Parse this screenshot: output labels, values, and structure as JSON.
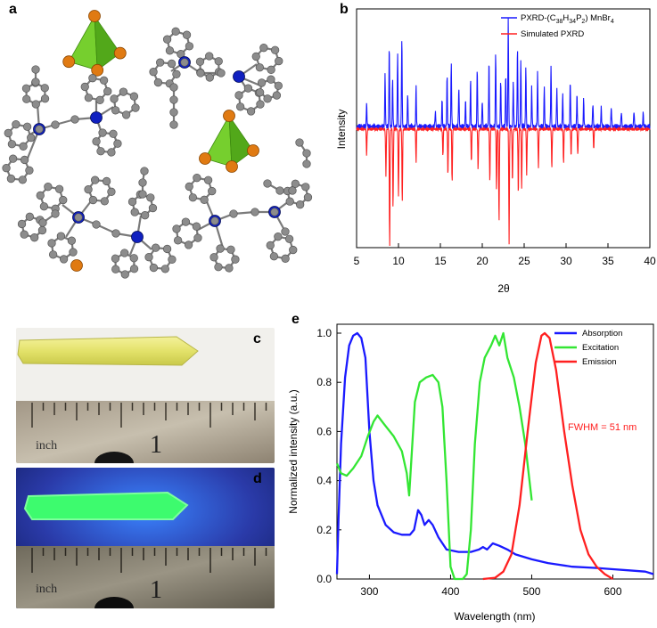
{
  "panels": {
    "a": {
      "letter": "a"
    },
    "b": {
      "letter": "b"
    },
    "c": {
      "letter": "c",
      "ruler_text": "inch",
      "ruler_number": "1"
    },
    "d": {
      "letter": "d",
      "ruler_text": "inch",
      "ruler_number": "1"
    },
    "e": {
      "letter": "e"
    }
  },
  "colors": {
    "blue": "#1a1aff",
    "red": "#ff2020",
    "green": "#33e633",
    "bromide": "#e07a12",
    "tetrahedron": "#5dbb1e",
    "carbon": "#8c8c8c",
    "phosphorus": "#1020c0"
  },
  "chart_data": [
    {
      "type": "line",
      "panel": "b",
      "xlabel": "2θ",
      "ylabel": "Intensity",
      "xlim": [
        5,
        40
      ],
      "xticks": [
        5,
        10,
        15,
        20,
        25,
        30,
        35,
        40
      ],
      "series": [
        {
          "name": "PXRD-(C38H34P2) MnBr4",
          "legend_main": "PXRD-(C",
          "legend_sub1": "38",
          "legend_mid1": "H",
          "legend_sub2": "34",
          "legend_mid2": "P",
          "legend_sub3": "2",
          "legend_mid3": ") MnBr",
          "legend_sub4": "4",
          "color": "#1a1aff",
          "peaks": [
            [
              6.2,
              0.18
            ],
            [
              8.4,
              0.4
            ],
            [
              8.9,
              0.62
            ],
            [
              9.3,
              0.35
            ],
            [
              9.9,
              0.55
            ],
            [
              10.4,
              0.68
            ],
            [
              11.1,
              0.25
            ],
            [
              12.1,
              0.3
            ],
            [
              14.4,
              0.12
            ],
            [
              15.2,
              0.2
            ],
            [
              15.8,
              0.38
            ],
            [
              16.3,
              0.48
            ],
            [
              17.2,
              0.3
            ],
            [
              18.0,
              0.2
            ],
            [
              18.6,
              0.35
            ],
            [
              19.4,
              0.45
            ],
            [
              20.0,
              0.2
            ],
            [
              20.8,
              0.5
            ],
            [
              21.6,
              0.55
            ],
            [
              22.2,
              0.35
            ],
            [
              22.8,
              0.4
            ],
            [
              23.1,
              0.82
            ],
            [
              23.7,
              0.35
            ],
            [
              24.2,
              0.6
            ],
            [
              24.6,
              0.5
            ],
            [
              25.2,
              0.45
            ],
            [
              25.9,
              0.3
            ],
            [
              26.6,
              0.4
            ],
            [
              27.4,
              0.3
            ],
            [
              28.2,
              0.45
            ],
            [
              28.9,
              0.3
            ],
            [
              29.6,
              0.25
            ],
            [
              30.5,
              0.35
            ],
            [
              31.3,
              0.25
            ],
            [
              32.1,
              0.2
            ],
            [
              33.2,
              0.18
            ],
            [
              34.2,
              0.15
            ],
            [
              35.4,
              0.15
            ],
            [
              36.6,
              0.12
            ],
            [
              38.1,
              0.12
            ],
            [
              39.2,
              0.1
            ]
          ]
        },
        {
          "name": "Simulated PXRD",
          "color": "#ff2020",
          "peaks": [
            [
              6.2,
              -0.2
            ],
            [
              8.5,
              -0.35
            ],
            [
              8.95,
              -0.92
            ],
            [
              9.35,
              -0.6
            ],
            [
              10.0,
              -0.5
            ],
            [
              10.45,
              -0.55
            ],
            [
              12.1,
              -0.25
            ],
            [
              15.3,
              -0.2
            ],
            [
              15.9,
              -0.35
            ],
            [
              16.4,
              -0.4
            ],
            [
              18.7,
              -0.25
            ],
            [
              19.5,
              -0.3
            ],
            [
              20.9,
              -0.4
            ],
            [
              21.7,
              -0.45
            ],
            [
              22.0,
              -0.7
            ],
            [
              23.2,
              -0.86
            ],
            [
              23.6,
              -0.4
            ],
            [
              24.3,
              -0.5
            ],
            [
              24.7,
              -0.45
            ],
            [
              25.3,
              -0.35
            ],
            [
              26.7,
              -0.3
            ],
            [
              28.3,
              -0.3
            ],
            [
              29.7,
              -0.25
            ],
            [
              30.6,
              -0.2
            ],
            [
              31.4,
              -0.2
            ],
            [
              33.3,
              -0.15
            ]
          ]
        }
      ]
    },
    {
      "type": "line",
      "panel": "e",
      "xlabel": "Wavelength (nm)",
      "ylabel": "Normalized intensity (a.u.)",
      "xlim": [
        260,
        650
      ],
      "ylim": [
        0.0,
        1.0
      ],
      "xticks": [
        300,
        400,
        500,
        600
      ],
      "yticks": [
        "0.0",
        "0.2",
        "0.4",
        "0.6",
        "0.8",
        "1.0"
      ],
      "annotation": "FWHM = 51 nm",
      "series": [
        {
          "name": "Absorption",
          "color": "#1a1aff",
          "points": [
            [
              260,
              0.02
            ],
            [
              262,
              0.25
            ],
            [
              265,
              0.55
            ],
            [
              270,
              0.82
            ],
            [
              275,
              0.95
            ],
            [
              280,
              0.99
            ],
            [
              285,
              1.0
            ],
            [
              290,
              0.98
            ],
            [
              295,
              0.9
            ],
            [
              300,
              0.6
            ],
            [
              305,
              0.4
            ],
            [
              310,
              0.3
            ],
            [
              320,
              0.22
            ],
            [
              330,
              0.19
            ],
            [
              340,
              0.18
            ],
            [
              350,
              0.18
            ],
            [
              355,
              0.2
            ],
            [
              360,
              0.28
            ],
            [
              364,
              0.26
            ],
            [
              368,
              0.22
            ],
            [
              373,
              0.24
            ],
            [
              378,
              0.22
            ],
            [
              385,
              0.17
            ],
            [
              395,
              0.12
            ],
            [
              410,
              0.11
            ],
            [
              425,
              0.11
            ],
            [
              435,
              0.12
            ],
            [
              440,
              0.13
            ],
            [
              445,
              0.12
            ],
            [
              452,
              0.145
            ],
            [
              460,
              0.135
            ],
            [
              470,
              0.12
            ],
            [
              480,
              0.1
            ],
            [
              500,
              0.08
            ],
            [
              520,
              0.065
            ],
            [
              550,
              0.05
            ],
            [
              580,
              0.045
            ],
            [
              600,
              0.04
            ],
            [
              620,
              0.035
            ],
            [
              640,
              0.03
            ],
            [
              650,
              0.02
            ]
          ]
        },
        {
          "name": "Excitation",
          "color": "#33e633",
          "points": [
            [
              260,
              0.47
            ],
            [
              265,
              0.43
            ],
            [
              272,
              0.42
            ],
            [
              280,
              0.45
            ],
            [
              290,
              0.5
            ],
            [
              298,
              0.58
            ],
            [
              305,
              0.64
            ],
            [
              310,
              0.665
            ],
            [
              318,
              0.63
            ],
            [
              330,
              0.58
            ],
            [
              340,
              0.52
            ],
            [
              346,
              0.43
            ],
            [
              349,
              0.34
            ],
            [
              352,
              0.5
            ],
            [
              356,
              0.72
            ],
            [
              362,
              0.8
            ],
            [
              370,
              0.82
            ],
            [
              378,
              0.83
            ],
            [
              385,
              0.8
            ],
            [
              390,
              0.7
            ],
            [
              395,
              0.4
            ],
            [
              400,
              0.05
            ],
            [
              405,
              0.0
            ],
            [
              415,
              0.0
            ],
            [
              420,
              0.02
            ],
            [
              425,
              0.2
            ],
            [
              430,
              0.55
            ],
            [
              436,
              0.8
            ],
            [
              442,
              0.9
            ],
            [
              450,
              0.95
            ],
            [
              455,
              0.99
            ],
            [
              460,
              0.95
            ],
            [
              465,
              1.0
            ],
            [
              470,
              0.9
            ],
            [
              478,
              0.82
            ],
            [
              485,
              0.7
            ],
            [
              492,
              0.55
            ],
            [
              500,
              0.32
            ]
          ]
        },
        {
          "name": "Emission",
          "color": "#ff2020",
          "points": [
            [
              440,
              0.0
            ],
            [
              455,
              0.005
            ],
            [
              465,
              0.03
            ],
            [
              475,
              0.1
            ],
            [
              485,
              0.3
            ],
            [
              495,
              0.6
            ],
            [
              505,
              0.88
            ],
            [
              512,
              0.99
            ],
            [
              516,
              1.0
            ],
            [
              522,
              0.98
            ],
            [
              530,
              0.85
            ],
            [
              540,
              0.6
            ],
            [
              550,
              0.38
            ],
            [
              560,
              0.2
            ],
            [
              570,
              0.1
            ],
            [
              580,
              0.05
            ],
            [
              590,
              0.02
            ],
            [
              600,
              0.0
            ]
          ]
        }
      ]
    }
  ]
}
